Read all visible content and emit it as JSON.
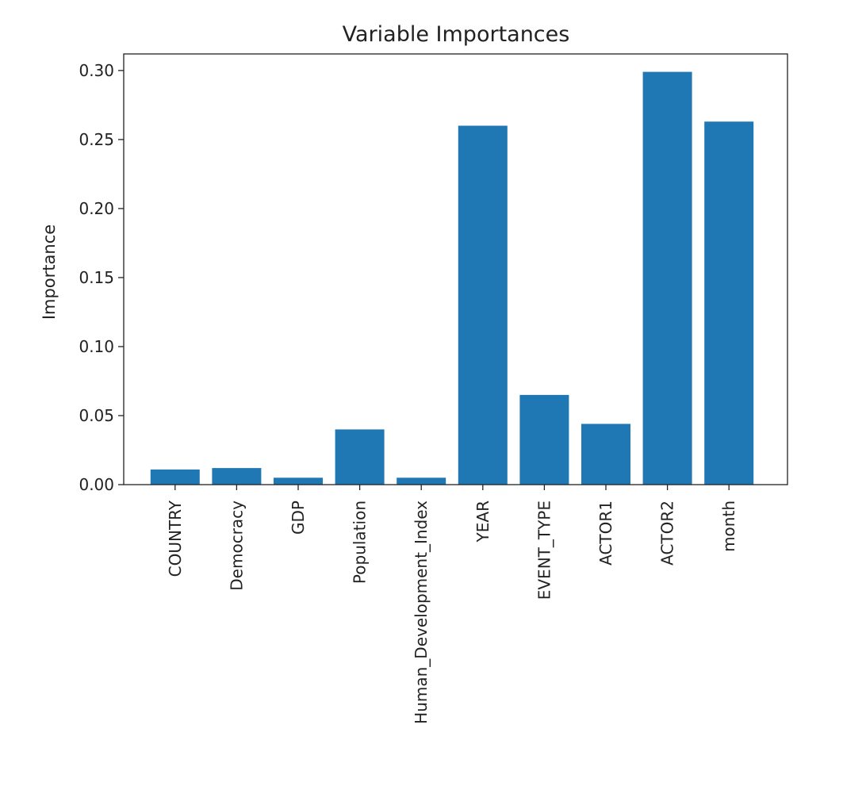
{
  "chart_data": {
    "type": "bar",
    "title": "Variable Importances",
    "xlabel": "",
    "ylabel": "Importance",
    "categories": [
      "COUNTRY",
      "Democracy",
      "GDP",
      "Population",
      "Human_Development_Index",
      "YEAR",
      "EVENT_TYPE",
      "ACTOR1",
      "ACTOR2",
      "month"
    ],
    "values": [
      0.011,
      0.012,
      0.005,
      0.04,
      0.005,
      0.26,
      0.065,
      0.044,
      0.299,
      0.263
    ],
    "ylim": [
      0,
      0.312
    ],
    "yticks": [
      0.0,
      0.05,
      0.1,
      0.15,
      0.2,
      0.25,
      0.3
    ],
    "ytick_labels": [
      "0.00",
      "0.05",
      "0.10",
      "0.15",
      "0.20",
      "0.25",
      "0.30"
    ],
    "bar_color": "#1f77b4",
    "grid": false
  }
}
